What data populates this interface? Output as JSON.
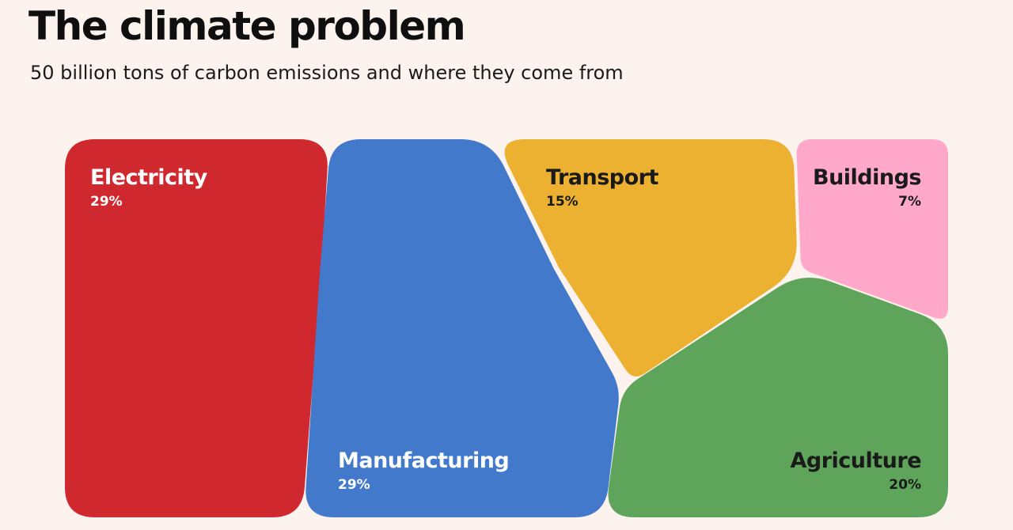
{
  "header": {
    "title": "The climate problem",
    "subtitle": "50 billion tons of carbon emissions and where they come from"
  },
  "chart_data": {
    "type": "voronoi-treemap",
    "unit": "%",
    "total_label": "50 billion tons",
    "categories": [
      "Electricity",
      "Manufacturing",
      "Transport",
      "Buildings",
      "Agriculture"
    ],
    "values": [
      29,
      29,
      15,
      7,
      20
    ],
    "labels": [
      "29%",
      "29%",
      "15%",
      "7%",
      "20%"
    ],
    "colors": [
      "#d0282f",
      "#4379cb",
      "#ecb130",
      "#ffa8c9",
      "#5ea45a"
    ],
    "label_colors": [
      "#ffffff",
      "#ffffff",
      "#1a1a1a",
      "#1a1a1a",
      "#1a1a1a"
    ]
  }
}
